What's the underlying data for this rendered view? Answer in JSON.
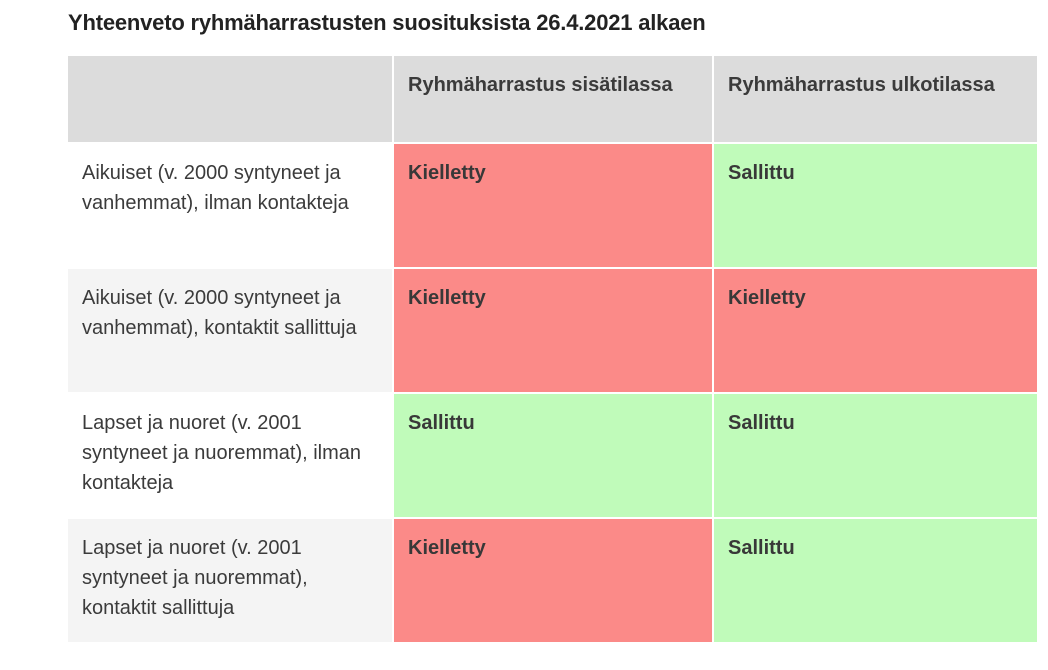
{
  "page": {
    "title": "Yhteenveto ryhmäharrastusten suosituksista 26.4.2021 alkaen"
  },
  "table": {
    "corner_label": "",
    "columns": [
      {
        "label": "Ryhmäharrastus sisätilassa"
      },
      {
        "label": "Ryhmäharrastus ulkotilassa"
      }
    ],
    "rows": [
      {
        "label": "Aikuiset (v. 2000 syntyneet ja vanhemmat), ilman kontakteja",
        "cells": [
          {
            "value": "Kielletty",
            "status": "forbidden"
          },
          {
            "value": "Sallittu",
            "status": "allowed"
          }
        ]
      },
      {
        "label": "Aikuiset (v. 2000 syntyneet ja vanhemmat), kontaktit sallittuja",
        "cells": [
          {
            "value": "Kielletty",
            "status": "forbidden"
          },
          {
            "value": "Kielletty",
            "status": "forbidden"
          }
        ]
      },
      {
        "label": "Lapset ja nuoret (v. 2001 syntyneet ja nuoremmat), ilman kontakteja",
        "cells": [
          {
            "value": "Sallittu",
            "status": "allowed"
          },
          {
            "value": "Sallittu",
            "status": "allowed"
          }
        ]
      },
      {
        "label": "Lapset ja nuoret (v. 2001 syntyneet ja nuoremmat), kontaktit sallittuja",
        "cells": [
          {
            "value": "Kielletty",
            "status": "forbidden"
          },
          {
            "value": "Sallittu",
            "status": "allowed"
          }
        ]
      }
    ]
  },
  "colors": {
    "forbidden_bg": "#fb8a88",
    "allowed_bg": "#c0fbba",
    "header_bg": "#dcdcdc",
    "row_alt_bg": "#f4f4f4",
    "label_text": "#3b3b3b",
    "title_text": "#222222",
    "separator": "#ffffff"
  }
}
